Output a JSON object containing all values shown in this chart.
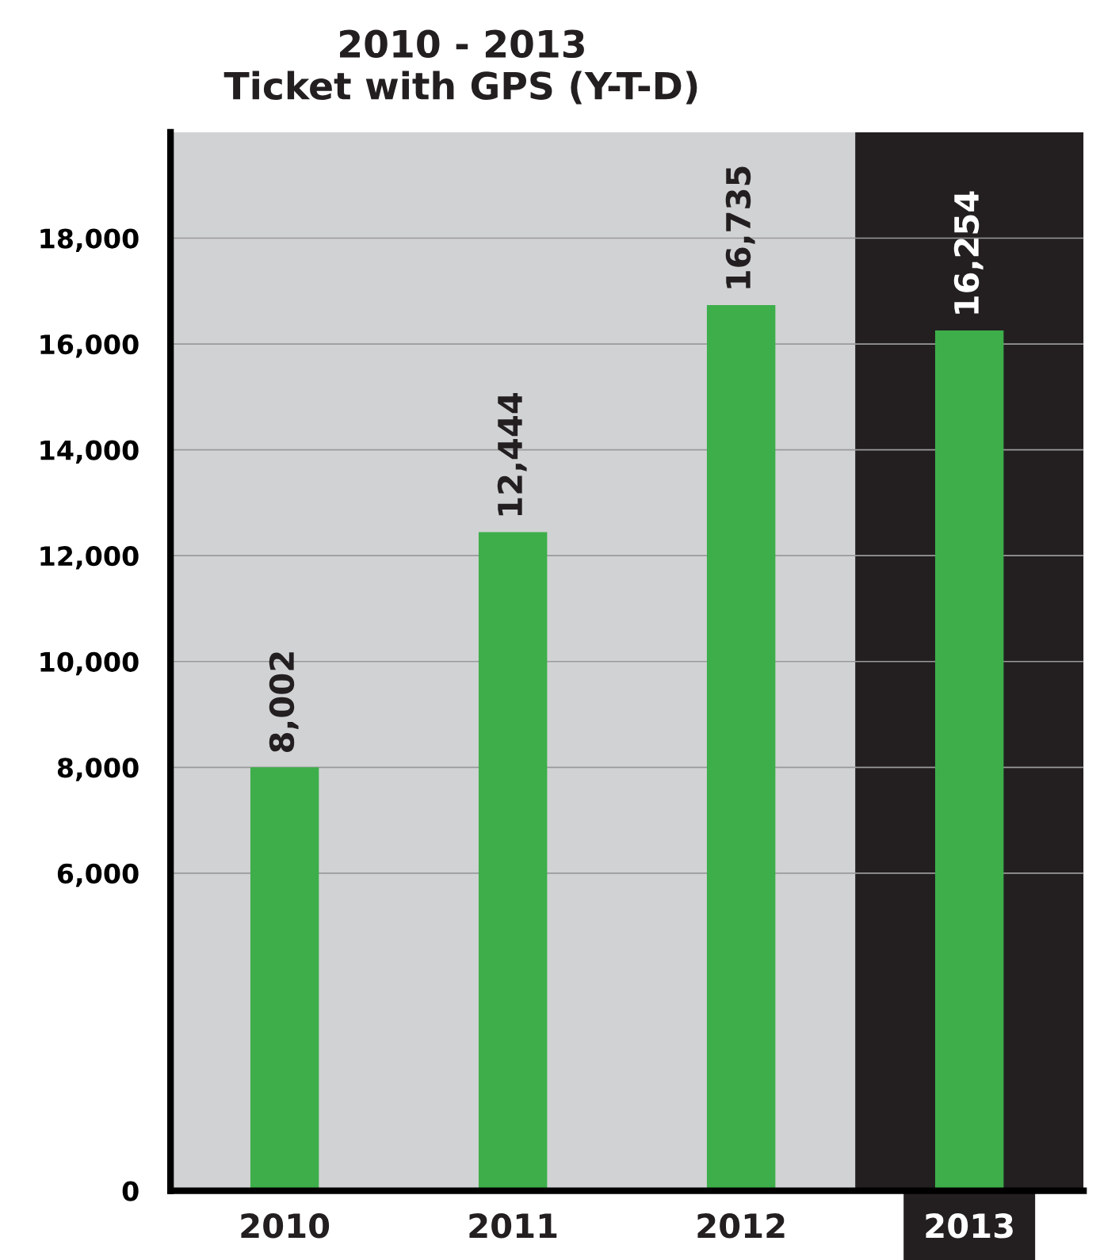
{
  "chart_data": {
    "type": "bar",
    "title": "2010 - 2013\nTicket with GPS (Y-T-D)",
    "categories": [
      "2010",
      "2011",
      "2012",
      "2013"
    ],
    "values": [
      8002,
      12444,
      16735,
      16254
    ],
    "color": "#3dae4a",
    "value_labels": [
      "8,002",
      "12,444",
      "16,735",
      "16,254"
    ],
    "ylim": [
      0,
      20000
    ],
    "yticks": [
      0,
      {
        "value": 6000,
        "label": "6,000"
      },
      {
        "value": 8000,
        "label": "8,000"
      },
      {
        "value": 10000,
        "label": "10,000"
      },
      {
        "value": 12000,
        "label": "12,000"
      },
      {
        "value": 14000,
        "label": "14,000"
      },
      {
        "value": 16000,
        "label": "16,000"
      },
      {
        "value": 18000,
        "label": "18,000"
      }
    ],
    "grid": "y",
    "bands": [
      {
        "axis": "x",
        "from": "2013",
        "to": "2013",
        "color": "#231f20"
      }
    ]
  }
}
